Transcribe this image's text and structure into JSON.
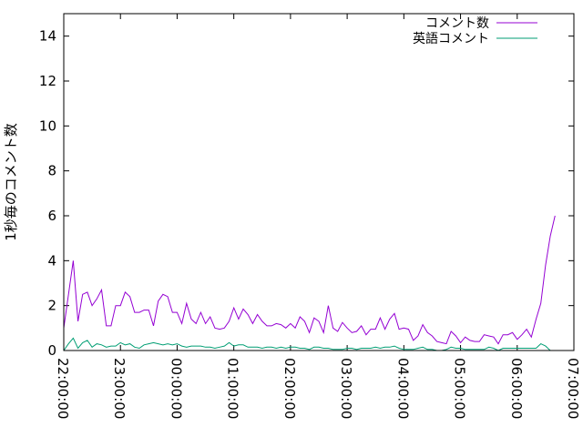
{
  "chart_data": {
    "type": "line",
    "title": "",
    "xlabel": "",
    "ylabel": "1秒毎のコメント数",
    "xlim": [
      "22:00:00",
      "07:00:00"
    ],
    "ylim": [
      0,
      15
    ],
    "yticks": [
      0,
      2,
      4,
      6,
      8,
      10,
      12,
      14
    ],
    "xticks": [
      "22:00:00",
      "23:00:00",
      "00:00:00",
      "01:00:00",
      "02:00:00",
      "03:00:00",
      "04:00:00",
      "05:00:00",
      "06:00:00",
      "07:00:00"
    ],
    "grid": false,
    "legend_position": "top-right",
    "sample_interval_minutes": 5,
    "series": [
      {
        "name": "コメント数",
        "color": "#9400d3",
        "values": [
          1.0,
          2.5,
          4.0,
          1.3,
          2.5,
          2.6,
          2.0,
          2.3,
          2.7,
          1.1,
          1.1,
          2.0,
          2.0,
          2.6,
          2.4,
          1.7,
          1.7,
          1.8,
          1.8,
          1.1,
          2.2,
          2.5,
          2.4,
          1.7,
          1.7,
          1.2,
          2.1,
          1.4,
          1.2,
          1.7,
          1.2,
          1.5,
          1.0,
          0.95,
          1.0,
          1.3,
          1.9,
          1.4,
          1.85,
          1.6,
          1.2,
          1.6,
          1.3,
          1.1,
          1.1,
          1.2,
          1.15,
          1.0,
          1.2,
          1.0,
          1.5,
          1.3,
          0.8,
          1.45,
          1.3,
          0.8,
          2.0,
          1.0,
          0.85,
          1.25,
          1.0,
          0.8,
          0.85,
          1.1,
          0.7,
          0.95,
          0.95,
          1.45,
          0.95,
          1.4,
          1.65,
          0.95,
          1.0,
          0.95,
          0.45,
          0.65,
          1.15,
          0.8,
          0.65,
          0.4,
          0.35,
          0.3,
          0.85,
          0.65,
          0.35,
          0.6,
          0.45,
          0.4,
          0.4,
          0.7,
          0.65,
          0.6,
          0.3,
          0.7,
          0.7,
          0.8,
          0.5,
          0.7,
          0.95,
          0.6,
          1.4,
          2.1,
          3.8,
          5.1,
          6.0
        ]
      },
      {
        "name": "英語コメント",
        "color": "#009e73",
        "values": [
          0.0,
          0.3,
          0.55,
          0.1,
          0.35,
          0.45,
          0.15,
          0.3,
          0.25,
          0.15,
          0.2,
          0.2,
          0.35,
          0.25,
          0.3,
          0.15,
          0.1,
          0.25,
          0.3,
          0.35,
          0.3,
          0.25,
          0.3,
          0.25,
          0.3,
          0.2,
          0.15,
          0.2,
          0.2,
          0.2,
          0.15,
          0.15,
          0.1,
          0.15,
          0.2,
          0.35,
          0.2,
          0.25,
          0.25,
          0.15,
          0.15,
          0.15,
          0.1,
          0.15,
          0.15,
          0.1,
          0.15,
          0.1,
          0.15,
          0.15,
          0.1,
          0.1,
          0.05,
          0.15,
          0.15,
          0.1,
          0.1,
          0.05,
          0.05,
          0.05,
          0.1,
          0.1,
          0.05,
          0.1,
          0.1,
          0.1,
          0.15,
          0.1,
          0.15,
          0.15,
          0.2,
          0.1,
          0.05,
          0.05,
          0.05,
          0.1,
          0.15,
          0.05,
          0.05,
          0.0,
          0.0,
          0.05,
          0.15,
          0.1,
          0.1,
          0.05,
          0.05,
          0.05,
          0.05,
          0.05,
          0.15,
          0.1,
          0.0,
          0.1,
          0.1,
          0.1,
          0.1,
          0.1,
          0.1,
          0.1,
          0.1,
          0.3,
          0.2,
          0.0,
          0.0
        ]
      }
    ]
  }
}
